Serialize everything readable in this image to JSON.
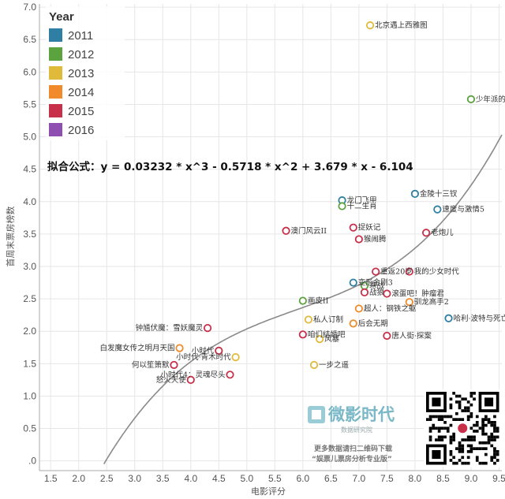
{
  "chart_data": {
    "type": "scatter",
    "title": "",
    "xlabel": "电影评分",
    "ylabel": "首周末票房榜数",
    "xlim": [
      1.3,
      9.55
    ],
    "ylim": [
      -0.15,
      7.05
    ],
    "xticks": [
      "1.5",
      "2.0",
      "2.5",
      "3.0",
      "3.5",
      "4.0",
      "4.5",
      "5.0",
      "5.5",
      "6.0",
      "6.5",
      "7.0",
      "7.5",
      "8.0",
      "8.5",
      "9.0",
      "9.5"
    ],
    "yticks": [
      ".0",
      "0.5",
      "1.0",
      "1.5",
      "2.0",
      "2.5",
      "3.0",
      "3.5",
      "4.0",
      "4.5",
      "5.0",
      "5.5",
      "6.0",
      "6.5",
      "7.0"
    ],
    "grid": true,
    "legend": {
      "title": "Year",
      "position": "top-left",
      "entries": [
        {
          "label": "2011",
          "color": "#2f7ea3"
        },
        {
          "label": "2012",
          "color": "#5aa33e"
        },
        {
          "label": "2013",
          "color": "#e0bb3b"
        },
        {
          "label": "2014",
          "color": "#f08a2a"
        },
        {
          "label": "2015",
          "color": "#c8304a"
        },
        {
          "label": "2016",
          "color": "#8e4fb0"
        }
      ]
    },
    "fit": {
      "label": "拟合公式：y = 0.03232 * x^3 - 0.5718 * x^2 + 3.679 * x - 6.104",
      "coef": [
        0.03232,
        -0.5718,
        3.679,
        -6.104
      ],
      "color": "#8a8a8a"
    },
    "points": [
      {
        "x": 7.2,
        "y": 6.72,
        "year": "2013",
        "label": "北京遇上西雅图"
      },
      {
        "x": 9.0,
        "y": 5.58,
        "year": "2012",
        "label": "少年派的奇幻漂流"
      },
      {
        "x": 6.7,
        "y": 4.02,
        "year": "2011",
        "label": "龙门飞甲"
      },
      {
        "x": 6.7,
        "y": 3.93,
        "year": "2012",
        "label": "十二生肖"
      },
      {
        "x": 8.0,
        "y": 4.12,
        "year": "2011",
        "label": "金陵十三钗"
      },
      {
        "x": 8.4,
        "y": 3.88,
        "year": "2011",
        "label": "速度与激情5"
      },
      {
        "x": 6.9,
        "y": 3.6,
        "year": "2015",
        "label": "捉妖记"
      },
      {
        "x": 8.2,
        "y": 3.52,
        "year": "2015",
        "label": "老炮儿"
      },
      {
        "x": 5.7,
        "y": 3.55,
        "year": "2015",
        "label": "澳门风云II"
      },
      {
        "x": 7.0,
        "y": 3.42,
        "year": "2015",
        "label": "猴闹腾"
      },
      {
        "x": 7.3,
        "y": 2.92,
        "year": "2015",
        "label": "重返20岁"
      },
      {
        "x": 7.9,
        "y": 2.92,
        "year": "2015",
        "label": "我的少女时代"
      },
      {
        "x": 6.9,
        "y": 2.75,
        "year": "2011",
        "label": "变形金刚3"
      },
      {
        "x": 7.1,
        "y": 2.7,
        "year": "2012",
        "label": "寒战"
      },
      {
        "x": 7.1,
        "y": 2.6,
        "year": "2015",
        "label": "战狼"
      },
      {
        "x": 7.5,
        "y": 2.58,
        "year": "2015",
        "label": "滚蛋吧！肿瘤君"
      },
      {
        "x": 7.9,
        "y": 2.45,
        "year": "2014",
        "label": "驯龙高手2"
      },
      {
        "x": 6.0,
        "y": 2.47,
        "year": "2012",
        "label": "画皮II"
      },
      {
        "x": 7.0,
        "y": 2.35,
        "year": "2014",
        "label": "超人：钢铁之躯"
      },
      {
        "x": 6.1,
        "y": 2.18,
        "year": "2013",
        "label": "私人订制"
      },
      {
        "x": 6.9,
        "y": 2.12,
        "year": "2014",
        "label": "后会无期"
      },
      {
        "x": 8.6,
        "y": 2.2,
        "year": "2011",
        "label": "哈利·波特与死亡圣器（下）"
      },
      {
        "x": 7.5,
        "y": 1.93,
        "year": "2015",
        "label": "唐人街·探案"
      },
      {
        "x": 6.0,
        "y": 1.95,
        "year": "2015",
        "label": "咱们结婚吧"
      },
      {
        "x": 6.3,
        "y": 1.88,
        "year": "2013",
        "label": "风暴"
      },
      {
        "x": 4.3,
        "y": 2.05,
        "year": "2015",
        "label": "钟馗伏魔：雪妖魔灵"
      },
      {
        "x": 4.5,
        "y": 1.7,
        "year": "2015",
        "label": "小时代"
      },
      {
        "x": 3.8,
        "y": 1.74,
        "year": "2014",
        "label": "白发魔女传之明月天国"
      },
      {
        "x": 4.8,
        "y": 1.6,
        "year": "2013",
        "label": "小时代·青木时代"
      },
      {
        "x": 3.7,
        "y": 1.48,
        "year": "2015",
        "label": "何以笙箫默"
      },
      {
        "x": 6.2,
        "y": 1.48,
        "year": "2013",
        "label": "一步之遥"
      },
      {
        "x": 4.7,
        "y": 1.33,
        "year": "2015",
        "label": "小时代4：灵魂尽头"
      },
      {
        "x": 4.0,
        "y": 1.25,
        "year": "2015",
        "label": "怒火天使"
      }
    ]
  },
  "branding": {
    "logo_text": "微影时代",
    "logo_sub": "数据研究院",
    "footer_line1": "更多数据请扫二维码下载",
    "footer_line2": "“娱票儿票房分析专业版”"
  }
}
